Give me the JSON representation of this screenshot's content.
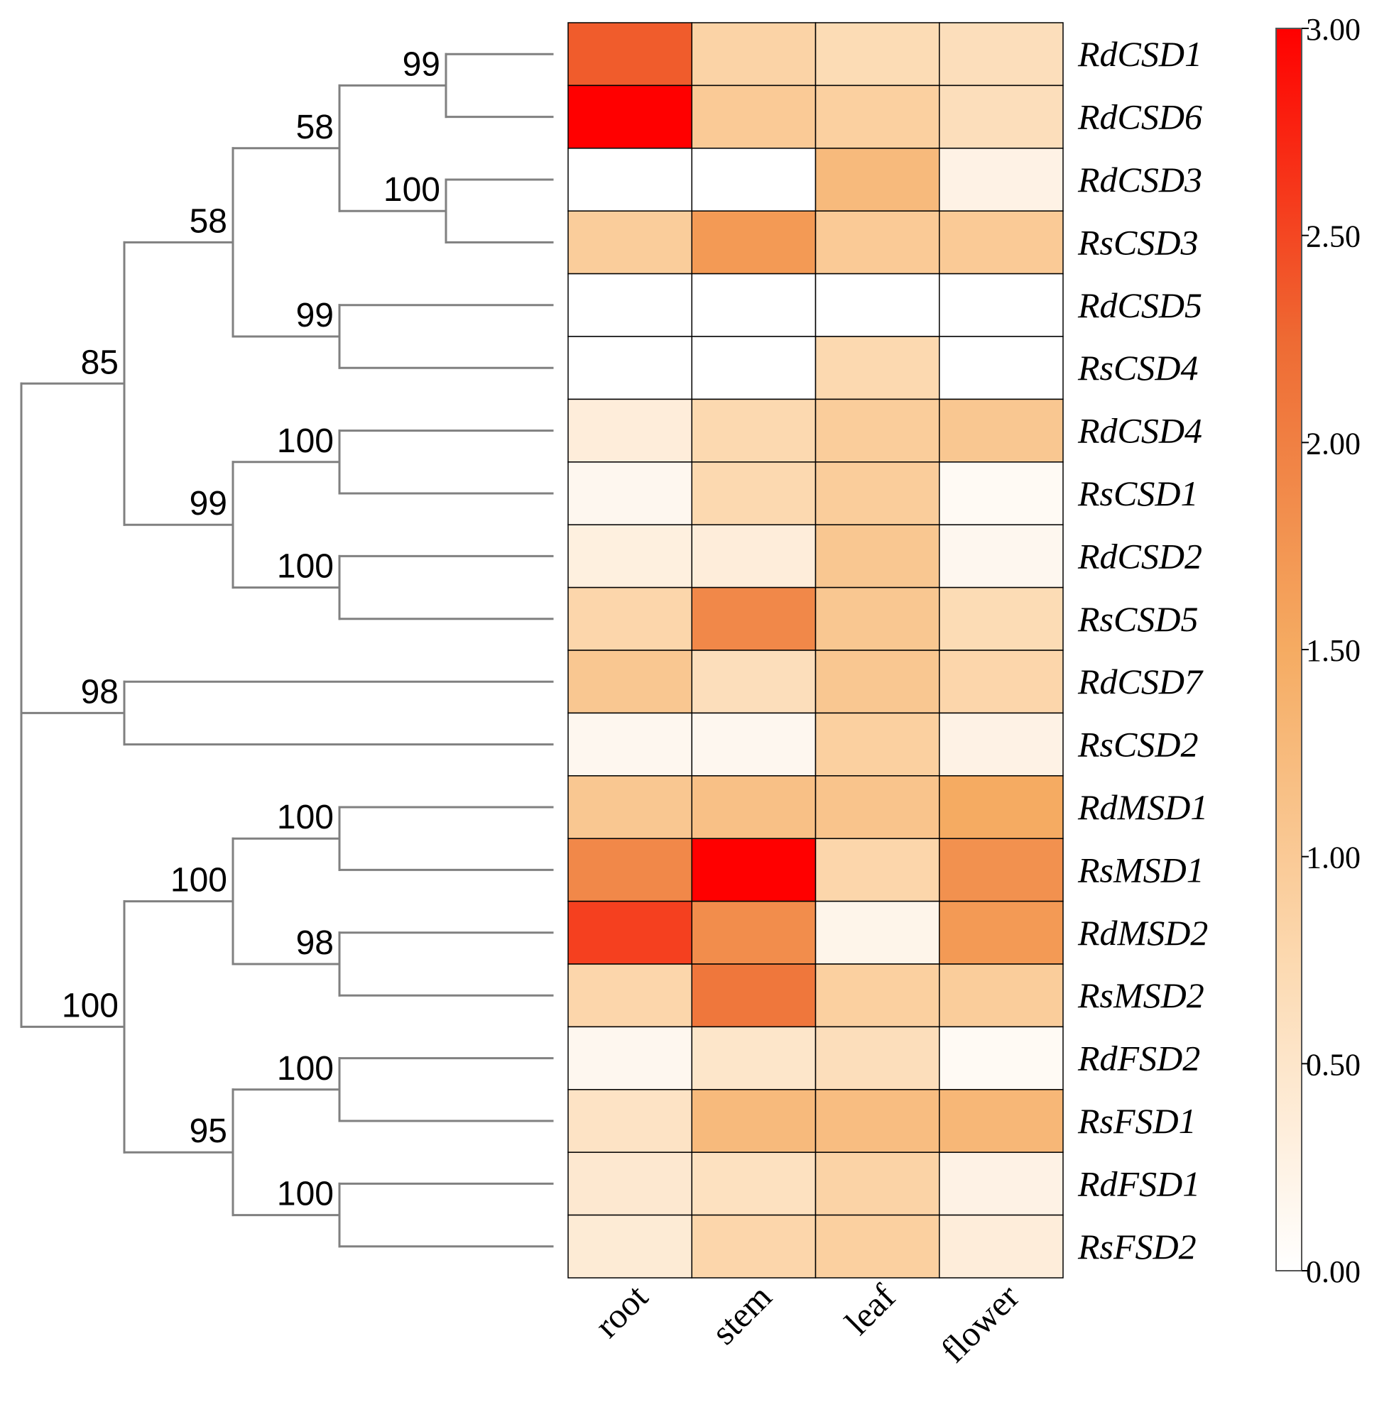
{
  "chart_data": {
    "type": "heatmap",
    "title": "",
    "xlabel": "",
    "ylabel": "",
    "columns": [
      "root",
      "stem",
      "leaf",
      "flower"
    ],
    "rows": [
      "RdCSD1",
      "RdCSD6",
      "RdCSD3",
      "RsCSD3",
      "RdCSD5",
      "RsCSD4",
      "RdCSD4",
      "RsCSD1",
      "RdCSD2",
      "RsCSD5",
      "RdCSD7",
      "RsCSD2",
      "RdMSD1",
      "RsMSD1",
      "RdMSD2",
      "RsMSD2",
      "RdFSD2",
      "RsFSD1",
      "RdFSD1",
      "RsFSD2"
    ],
    "values": [
      [
        2.35,
        0.85,
        0.7,
        0.65
      ],
      [
        3.0,
        1.0,
        0.9,
        0.65
      ],
      [
        0.0,
        0.0,
        1.25,
        0.25
      ],
      [
        0.95,
        1.7,
        1.0,
        1.0
      ],
      [
        0.0,
        0.0,
        0.0,
        0.0
      ],
      [
        0.0,
        0.0,
        0.75,
        0.0
      ],
      [
        0.35,
        0.75,
        0.95,
        1.05
      ],
      [
        0.15,
        0.75,
        0.95,
        0.1
      ],
      [
        0.3,
        0.35,
        1.05,
        0.15
      ],
      [
        0.8,
        1.9,
        1.05,
        0.7
      ],
      [
        1.05,
        0.65,
        1.05,
        0.8
      ],
      [
        0.15,
        0.15,
        0.9,
        0.25
      ],
      [
        1.05,
        1.15,
        1.1,
        1.5
      ],
      [
        1.9,
        3.0,
        0.8,
        1.8
      ],
      [
        2.55,
        1.85,
        0.2,
        1.7
      ],
      [
        0.8,
        2.1,
        0.9,
        0.95
      ],
      [
        0.15,
        0.5,
        0.65,
        0.1
      ],
      [
        0.55,
        1.25,
        1.2,
        1.3
      ],
      [
        0.45,
        0.6,
        0.85,
        0.25
      ],
      [
        0.4,
        0.8,
        0.9,
        0.35
      ]
    ],
    "colorbar": {
      "min": 0,
      "max": 3,
      "ticks": [
        0,
        0.5,
        1,
        1.5,
        2,
        2.5,
        3
      ],
      "tick_labels": [
        "0.00",
        "0.50",
        "1.00",
        "1.50",
        "2.00",
        "2.50",
        "3.00"
      ],
      "colors": [
        "#ffffff",
        "#fcd9b0",
        "#f5ab62",
        "#ee6a33",
        "#ff0000"
      ]
    },
    "grid": true,
    "legend": "right",
    "dendrogram": {
      "line_color": "#808080",
      "bootstrap_values": [
        "99",
        "58",
        "100",
        "58",
        "99",
        "85",
        "100",
        "99",
        "100",
        "98",
        "100",
        "100",
        "98",
        "100",
        "100",
        "95",
        "100"
      ]
    }
  }
}
